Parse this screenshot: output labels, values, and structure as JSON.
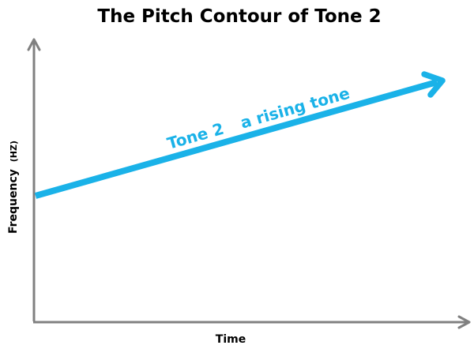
{
  "title": "The Pitch Contour of Tone 2",
  "y_axis": {
    "label": "Frequency",
    "unit": "(HZ)"
  },
  "x_axis": {
    "label": "Time"
  },
  "contour": {
    "tone_label": "Tone 2",
    "description": "a rising tone",
    "shape": "rising"
  },
  "colors": {
    "axis": "#808080",
    "contour": "#1ab2e8",
    "title": "#000000"
  }
}
